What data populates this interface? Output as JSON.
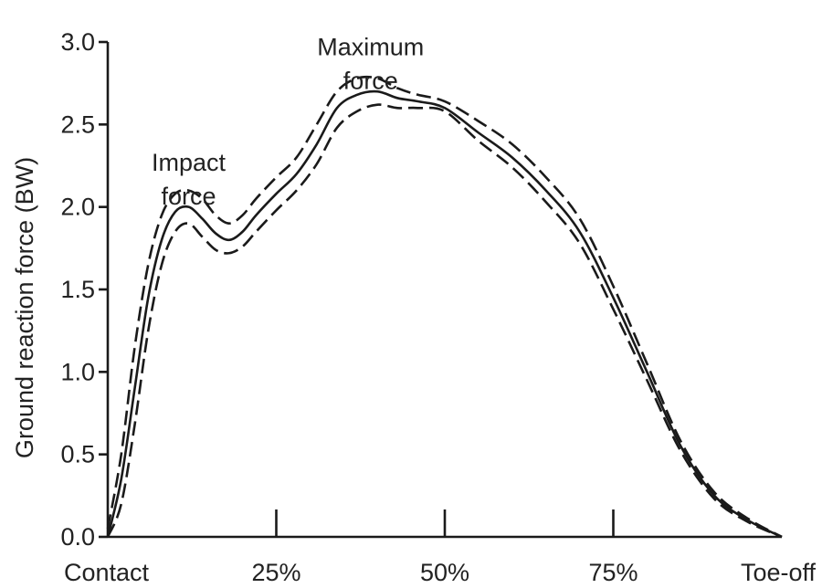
{
  "chart_data": {
    "type": "line",
    "title": "",
    "xlabel": "",
    "ylabel": "Ground reaction force (BW)",
    "xlim": [
      0,
      100
    ],
    "ylim": [
      0,
      3.0
    ],
    "x_ticks": [
      {
        "value": 0,
        "label": "Contact"
      },
      {
        "value": 25,
        "label": "25%"
      },
      {
        "value": 50,
        "label": "50%"
      },
      {
        "value": 75,
        "label": "75%"
      },
      {
        "value": 100,
        "label": "Toe-off"
      }
    ],
    "y_ticks": [
      {
        "value": 0.0,
        "label": "0.0"
      },
      {
        "value": 0.5,
        "label": "0.5"
      },
      {
        "value": 1.0,
        "label": "1.0"
      },
      {
        "value": 1.5,
        "label": "1.5"
      },
      {
        "value": 2.0,
        "label": "2.0"
      },
      {
        "value": 2.5,
        "label": "2.5"
      },
      {
        "value": 3.0,
        "label": "3.0"
      }
    ],
    "grid": false,
    "legend": "none",
    "series": [
      {
        "style": "solid",
        "x": [
          0,
          2,
          4,
          6,
          8,
          10,
          12,
          14,
          16,
          18,
          20,
          22,
          25,
          28,
          31,
          34,
          37,
          40,
          43,
          46,
          50,
          55,
          60,
          65,
          70,
          75,
          80,
          85,
          90,
          95,
          100
        ],
        "y": [
          0.0,
          0.35,
          0.9,
          1.45,
          1.8,
          1.97,
          2.0,
          1.93,
          1.84,
          1.8,
          1.85,
          1.95,
          2.08,
          2.2,
          2.38,
          2.6,
          2.68,
          2.7,
          2.66,
          2.64,
          2.6,
          2.45,
          2.3,
          2.1,
          1.85,
          1.45,
          1.0,
          0.55,
          0.25,
          0.1,
          0.0
        ]
      },
      {
        "style": "dashed",
        "x": [
          0,
          2,
          4,
          6,
          8,
          10,
          12,
          14,
          16,
          18,
          20,
          22,
          25,
          28,
          31,
          34,
          37,
          40,
          43,
          46,
          50,
          55,
          60,
          65,
          70,
          75,
          80,
          85,
          90,
          95,
          100
        ],
        "y": [
          0.05,
          0.5,
          1.15,
          1.65,
          1.95,
          2.08,
          2.1,
          2.05,
          1.95,
          1.9,
          1.95,
          2.05,
          2.18,
          2.3,
          2.5,
          2.7,
          2.78,
          2.78,
          2.72,
          2.68,
          2.64,
          2.52,
          2.38,
          2.18,
          1.93,
          1.52,
          1.05,
          0.58,
          0.27,
          0.11,
          0.0
        ]
      },
      {
        "style": "dashed",
        "x": [
          0,
          2,
          4,
          6,
          8,
          10,
          12,
          14,
          16,
          18,
          20,
          22,
          25,
          28,
          31,
          34,
          37,
          40,
          43,
          46,
          50,
          55,
          60,
          65,
          70,
          75,
          80,
          85,
          90,
          95,
          100
        ],
        "y": [
          0.0,
          0.2,
          0.68,
          1.25,
          1.65,
          1.85,
          1.9,
          1.82,
          1.74,
          1.72,
          1.76,
          1.85,
          1.98,
          2.1,
          2.26,
          2.48,
          2.58,
          2.62,
          2.6,
          2.6,
          2.58,
          2.4,
          2.24,
          2.03,
          1.78,
          1.38,
          0.95,
          0.52,
          0.23,
          0.09,
          0.0
        ]
      }
    ],
    "annotations": [
      {
        "text": [
          "Impact",
          "force"
        ],
        "x": 12,
        "y": 2.22
      },
      {
        "text": [
          "Maximum",
          "force"
        ],
        "x": 39,
        "y": 2.92
      }
    ]
  }
}
